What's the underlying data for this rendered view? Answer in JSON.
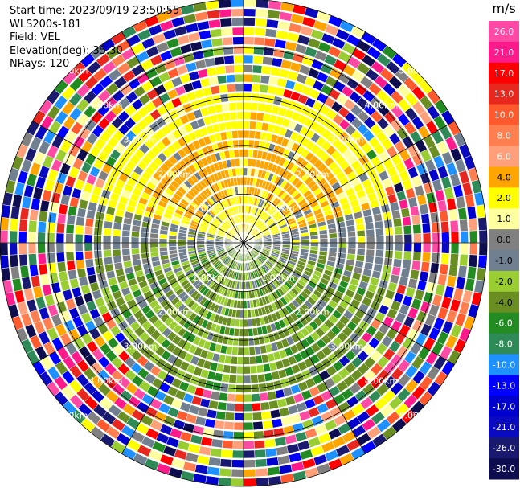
{
  "info": {
    "start_time": "Start time: 2023/09/19 23:50:55",
    "instrument": "WLS200s-181",
    "field": "Field: VEL",
    "elevation": "Elevation(deg): 35.30",
    "nrays": "NRays: 120"
  },
  "chart_data": {
    "type": "heatmap",
    "subtype": "polar-ppi",
    "field": "VEL",
    "rays": 120,
    "max_range_km": 5.0,
    "ring_labels": [
      "1.00km",
      "2.00km",
      "3.00km",
      "4.00km",
      "5.00km"
    ],
    "colorbar": {
      "unit": "m/s",
      "ticks": [
        "26.0",
        "21.0",
        "17.0",
        "13.0",
        "10.0",
        "8.0",
        "6.0",
        "4.0",
        "2.0",
        "1.0",
        "0.0",
        "-1.0",
        "-2.0",
        "-4.0",
        "-6.0",
        "-8.0",
        "-10.0",
        "-13.0",
        "-17.0",
        "-21.0",
        "-26.0",
        "-30.0"
      ],
      "colors": [
        "#ff4aa5",
        "#ff1a8c",
        "#ff0000",
        "#e8281e",
        "#ff5a2d",
        "#ff7f50",
        "#ffa07a",
        "#ffa500",
        "#ffff00",
        "#ffffa0",
        "#808080",
        "#708090",
        "#9acd32",
        "#6b8e23",
        "#228b22",
        "#2e8b57",
        "#1e90ff",
        "#0000ff",
        "#0000cd",
        "#0a0ac0",
        "#191970",
        "#0d0d50"
      ]
    },
    "pattern": {
      "north_sector": "positive (yellow/orange, +2 to +8 m/s)",
      "south_sector": "negative (green, -2 to -6 m/s)",
      "east_west": "near zero (grey)",
      "outer_ranges": "noisy / all colors"
    }
  }
}
